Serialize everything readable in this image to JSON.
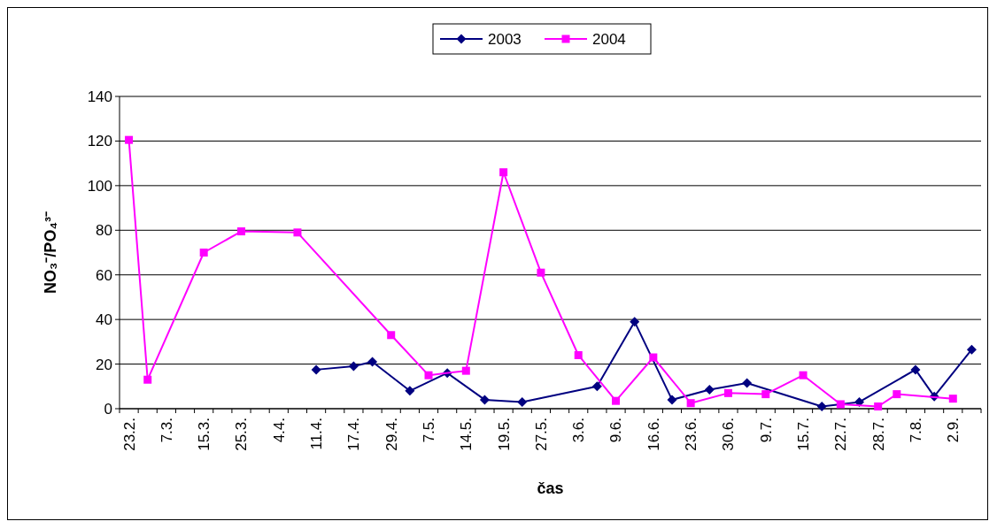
{
  "chart_data": {
    "type": "line",
    "xlabel": "čas",
    "ylabel": "NO₃⁻/PO₄³⁻",
    "categories": [
      "23.2.",
      null,
      "7.3.",
      null,
      "15.3.",
      null,
      "25.3.",
      null,
      "4.4.",
      null,
      "11.4.",
      null,
      "17.4.",
      null,
      "29.4.",
      null,
      "7.5.",
      null,
      "14.5.",
      null,
      "19.5.",
      null,
      "27.5.",
      null,
      "3.6.",
      null,
      "9.6.",
      null,
      "16.6.",
      null,
      "23.6.",
      null,
      "30.6.",
      null,
      "9.7.",
      null,
      "15.7.",
      null,
      "22.7.",
      null,
      "28.7.",
      null,
      "7.8.",
      null,
      "2.9.",
      null
    ],
    "series": [
      {
        "name": "2003",
        "color": "#000080",
        "marker": "diamond",
        "values": [
          null,
          null,
          null,
          null,
          null,
          null,
          null,
          null,
          null,
          null,
          17.5,
          null,
          19,
          21,
          null,
          8,
          null,
          16,
          null,
          4,
          null,
          3,
          null,
          null,
          null,
          10,
          null,
          39,
          null,
          4,
          null,
          8.5,
          null,
          11.5,
          null,
          null,
          null,
          1,
          null,
          3,
          null,
          null,
          17.5,
          5.5,
          null,
          26.5
        ]
      },
      {
        "name": "2004",
        "color": "#ff00ff",
        "marker": "square",
        "values": [
          120.5,
          13,
          null,
          null,
          70,
          null,
          79.5,
          null,
          null,
          79,
          null,
          null,
          null,
          null,
          33,
          null,
          15,
          null,
          17,
          null,
          106,
          null,
          61,
          null,
          24,
          null,
          3.5,
          null,
          23,
          null,
          2.5,
          null,
          7,
          null,
          6.5,
          null,
          15,
          null,
          2,
          null,
          1,
          6.5,
          null,
          null,
          4.5,
          null
        ]
      }
    ],
    "ylim": [
      0,
      140
    ],
    "yticks": [
      0,
      20,
      40,
      60,
      80,
      100,
      120,
      140
    ],
    "grid": "y",
    "legend": "top",
    "line_style": "solid"
  }
}
